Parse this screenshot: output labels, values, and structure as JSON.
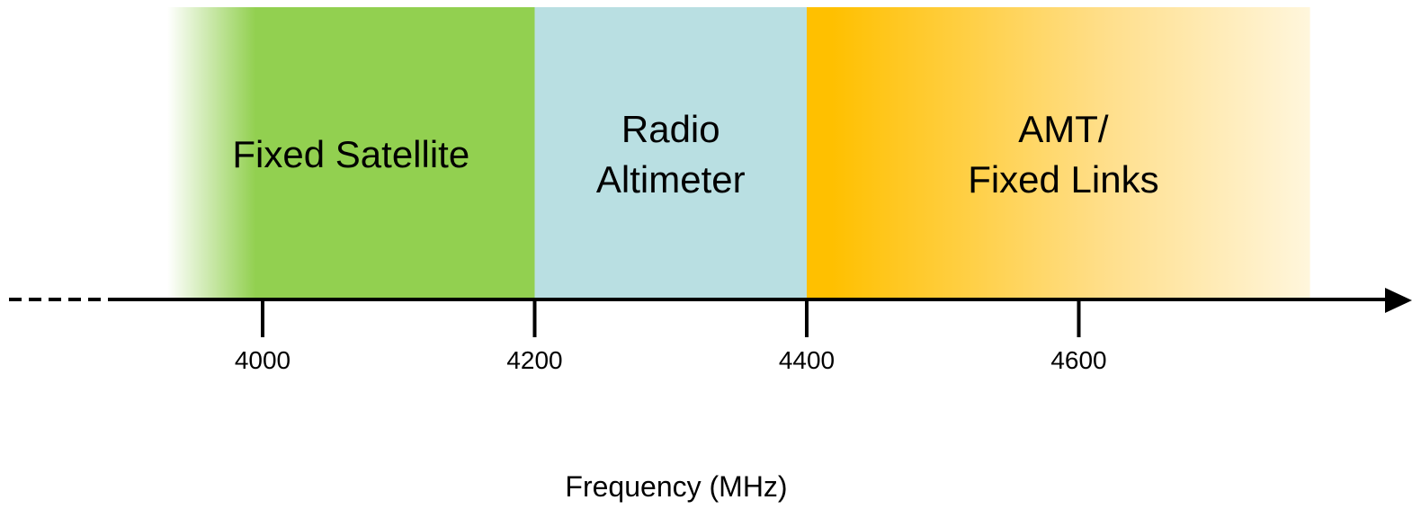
{
  "diagram": {
    "bands": [
      {
        "id": "fixed-satellite",
        "start_mhz": 3930,
        "end_mhz": 4200,
        "lines": [
          "Fixed Satellite"
        ],
        "colors": {
          "main": "#92d050",
          "fade": "#ffffff"
        },
        "fade": "left"
      },
      {
        "id": "radio-altimeter",
        "start_mhz": 4200,
        "end_mhz": 4400,
        "lines": [
          "Radio",
          "Altimeter"
        ],
        "colors": {
          "main": "#b9dfe2"
        },
        "fade": "none"
      },
      {
        "id": "amt-fixed-links",
        "start_mhz": 4400,
        "end_mhz": 4770,
        "lines": [
          "AMT/",
          "Fixed Links"
        ],
        "colors": {
          "main": "#ffc000",
          "fade": "#fff6dc"
        },
        "fade": "right"
      }
    ],
    "axis": {
      "ticks": [
        4000,
        4200,
        4400,
        4600
      ],
      "tick_labels": [
        "4000",
        "4200",
        "4400",
        "4600"
      ],
      "title": "Frequency (MHz)",
      "line_color": "#000000",
      "continues_left_dashed": true,
      "arrow_right": true
    }
  }
}
